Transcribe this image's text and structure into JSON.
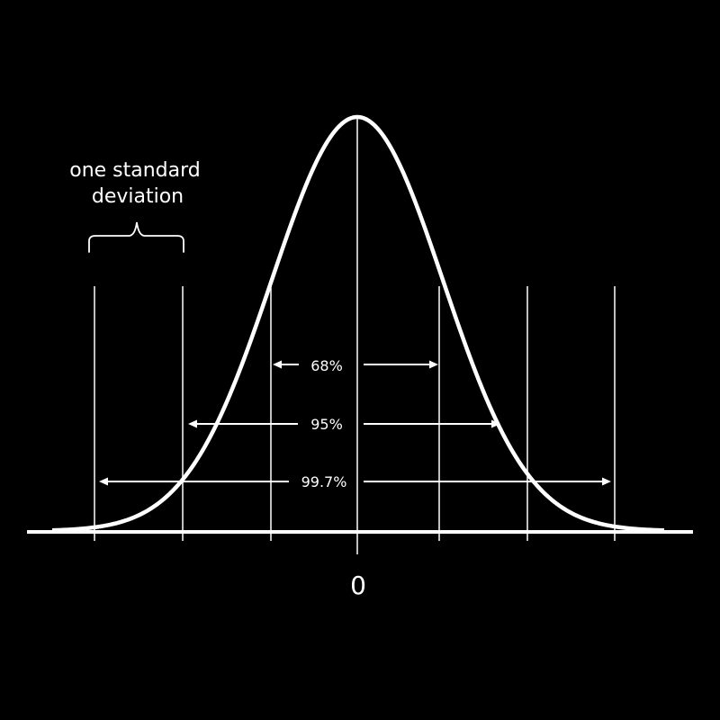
{
  "diagram": {
    "title": "",
    "brace_label": [
      "one standard",
      "deviation"
    ],
    "center_label": "0",
    "spans": [
      {
        "label": "68%",
        "sigma": 1
      },
      {
        "label": "95%",
        "sigma": 2
      },
      {
        "label": "99.7%",
        "sigma": 3
      }
    ],
    "sigma_lines": [
      -3,
      -2,
      -1,
      0,
      1,
      2,
      3
    ],
    "colors": {
      "background": "#000000",
      "foreground": "#ffffff"
    }
  }
}
